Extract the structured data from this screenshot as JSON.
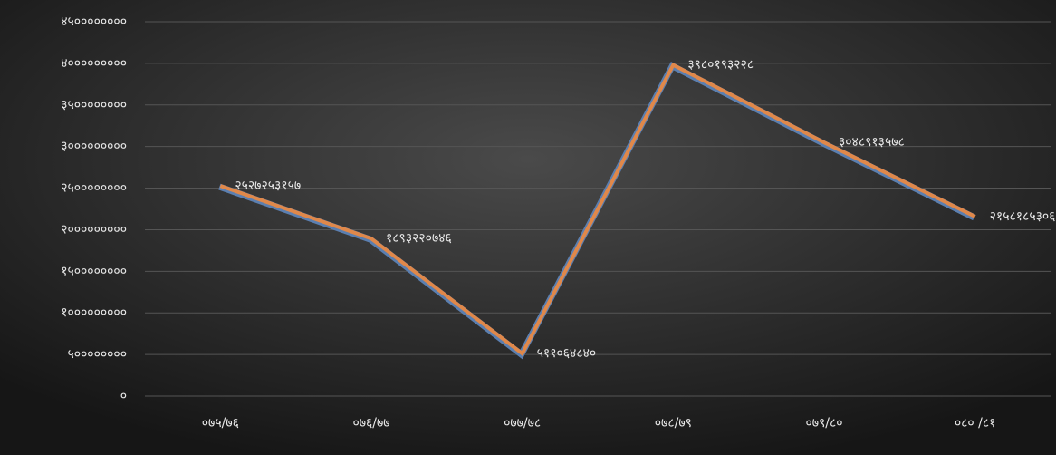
{
  "chart_data": {
    "type": "line",
    "categories": [
      "०७५/७६",
      "०७६/७७",
      "०७७/७८",
      "०७८/७९",
      "०७९/८०",
      "०८० /८१"
    ],
    "series": [
      {
        "color": "#e0884a",
        "values": [
          2527253157,
          1893220746,
          511064840,
          3980193228,
          3048913578,
          2158185306
        ],
        "value_labels": [
          "२५२७२५३१५७",
          "१८९३२२०७४६",
          "५११०६४८४०",
          "३९८०१९३२२८",
          "३०४८९१३५७८",
          "२१५८१८५३०६"
        ]
      }
    ],
    "ylim": [
      0,
      4500000000
    ],
    "yticks": [
      {
        "value": 0,
        "label": "०"
      },
      {
        "value": 500000000,
        "label": "५००००००००"
      },
      {
        "value": 1000000000,
        "label": "१०००००००००"
      },
      {
        "value": 1500000000,
        "label": "१५००००००००"
      },
      {
        "value": 2000000000,
        "label": "२०००००००००"
      },
      {
        "value": 2500000000,
        "label": "२५००००००००"
      },
      {
        "value": 3000000000,
        "label": "३०००००००००"
      },
      {
        "value": 3500000000,
        "label": "३५००००००००"
      },
      {
        "value": 4000000000,
        "label": "४०००००००००"
      },
      {
        "value": 4500000000,
        "label": "४५००००००००"
      }
    ],
    "grid": true
  }
}
